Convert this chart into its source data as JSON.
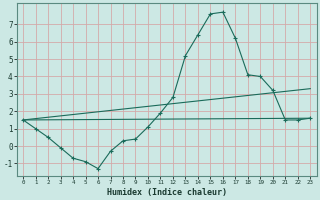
{
  "xlabel": "Humidex (Indice chaleur)",
  "bg_color": "#cce8e4",
  "grid_color": "#d4aaaa",
  "line_color": "#1a6b5a",
  "xlim": [
    -0.5,
    23.5
  ],
  "ylim": [
    -1.7,
    8.2
  ],
  "yticks": [
    -1,
    0,
    1,
    2,
    3,
    4,
    5,
    6,
    7
  ],
  "xticks": [
    0,
    1,
    2,
    3,
    4,
    5,
    6,
    7,
    8,
    9,
    10,
    11,
    12,
    13,
    14,
    15,
    16,
    17,
    18,
    19,
    20,
    21,
    22,
    23
  ],
  "main_series": {
    "x": [
      0,
      1,
      2,
      3,
      4,
      5,
      6,
      7,
      8,
      9,
      10,
      11,
      12,
      13,
      14,
      15,
      16,
      17,
      18,
      19,
      20,
      21,
      22,
      23
    ],
    "y": [
      1.5,
      1.0,
      0.5,
      -0.1,
      -0.7,
      -0.9,
      -1.3,
      -0.3,
      0.3,
      0.4,
      1.1,
      1.9,
      2.8,
      5.2,
      6.4,
      7.6,
      7.7,
      6.2,
      4.1,
      4.0,
      3.2,
      1.5,
      1.5,
      1.6
    ]
  },
  "line1": {
    "x": [
      0,
      23
    ],
    "y": [
      1.5,
      3.3
    ]
  },
  "line2": {
    "x": [
      0,
      23
    ],
    "y": [
      1.5,
      1.6
    ]
  }
}
